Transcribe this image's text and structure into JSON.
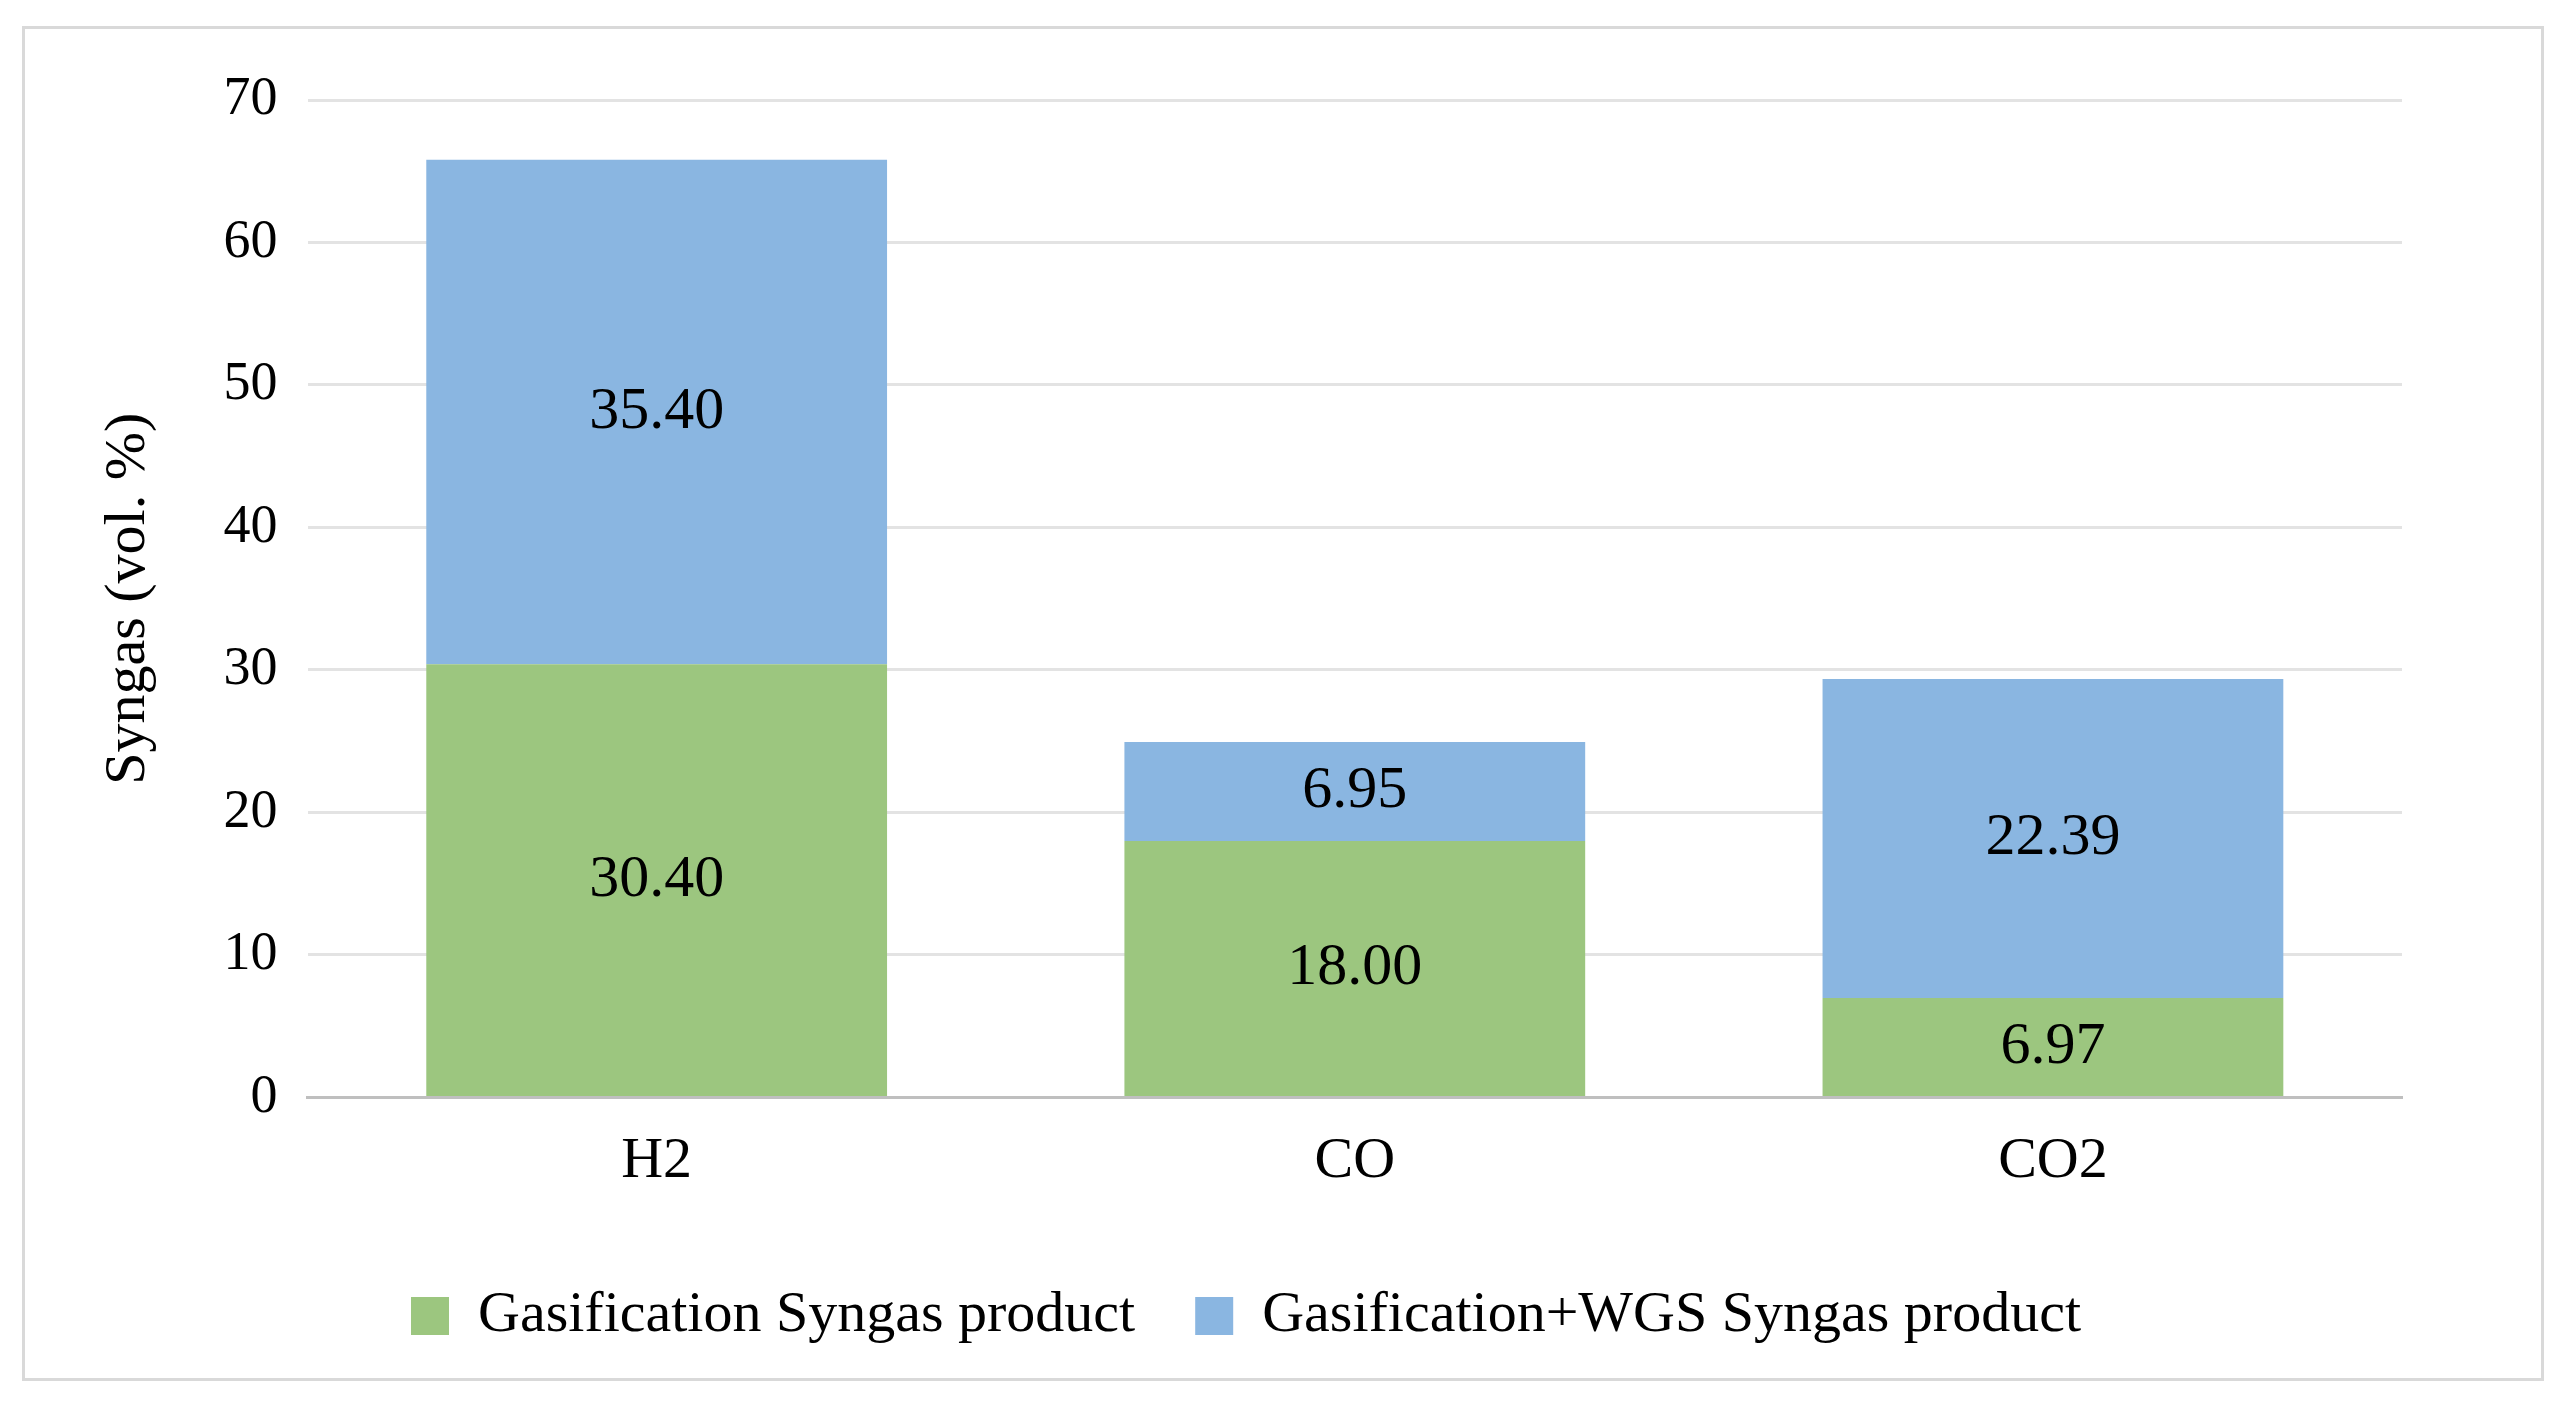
{
  "chart_data": {
    "type": "bar",
    "stacked": true,
    "ylabel": "Syngas (vol. %)",
    "categories": [
      "H2",
      "CO",
      "CO2"
    ],
    "series": [
      {
        "name": "Gasification Syngas product",
        "color": "#9cc67f",
        "values": [
          30.4,
          18.0,
          6.97
        ],
        "value_labels": [
          "30.40",
          "18.00",
          "6.97"
        ]
      },
      {
        "name": "Gasification+WGS Syngas product",
        "color": "#8ab6e1",
        "values": [
          35.4,
          6.95,
          22.39
        ],
        "value_labels": [
          "35.40",
          "6.95",
          "22.39"
        ]
      }
    ],
    "ylim": [
      0,
      70
    ],
    "yticks": [
      0,
      10,
      20,
      30,
      40,
      50,
      60,
      70
    ],
    "grid": "y",
    "legend": "bottom"
  }
}
